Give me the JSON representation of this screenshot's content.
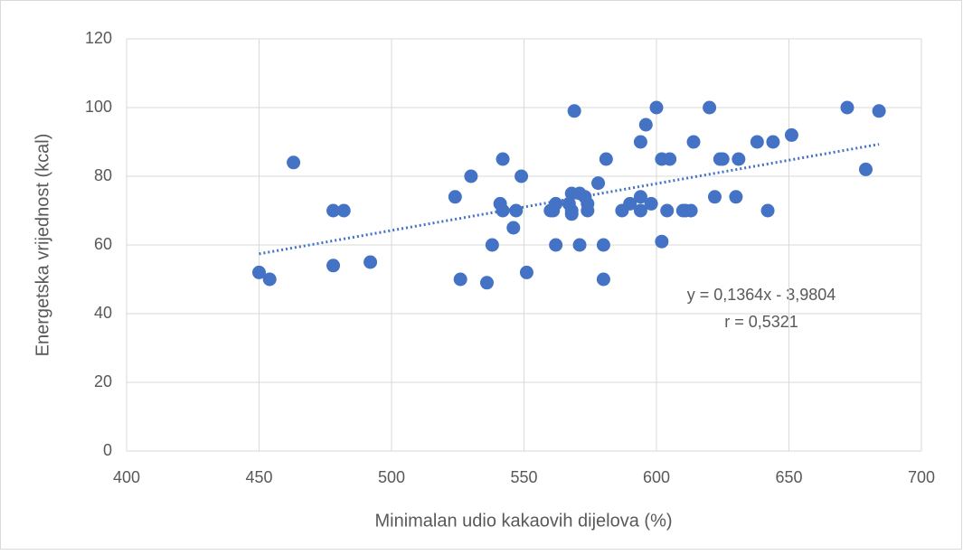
{
  "chart_data": {
    "type": "scatter",
    "x_label": "Minimalan udio kakaovih dijelova (%)",
    "y_label": "Energetska vrijednost (kcal)",
    "xlim": [
      400,
      700
    ],
    "xticks": [
      400,
      450,
      500,
      550,
      600,
      650,
      700
    ],
    "ylim": [
      0,
      120
    ],
    "yticks": [
      0,
      20,
      40,
      60,
      80,
      100,
      120
    ],
    "grid": true,
    "series": [
      {
        "color": "#4472c4",
        "x": [
          450,
          454,
          463,
          478,
          482,
          478,
          492,
          524,
          530,
          526,
          536,
          538,
          542,
          541,
          542,
          547,
          546,
          549,
          551,
          561,
          562,
          562,
          560,
          568,
          567,
          568,
          568,
          571,
          573,
          574,
          574,
          569,
          571,
          578,
          580,
          580,
          581,
          587,
          590,
          594,
          594,
          594,
          596,
          598,
          600,
          602,
          602,
          604,
          605,
          610,
          611,
          613,
          614,
          620,
          622,
          624,
          625,
          631,
          630,
          638,
          642,
          644,
          651,
          672,
          679,
          684
        ],
        "values": [
          52,
          50,
          84,
          70,
          70,
          54,
          55,
          74,
          80,
          50,
          49,
          60,
          85,
          72,
          70,
          70,
          65,
          80,
          52,
          70,
          60,
          72,
          70,
          75,
          72,
          70,
          69,
          75,
          74,
          72,
          70,
          99,
          60,
          78,
          50,
          60,
          85,
          70,
          72,
          90,
          74,
          70,
          95,
          72,
          100,
          85,
          61,
          70,
          85,
          70,
          70,
          70,
          90,
          100,
          74,
          85,
          85,
          85,
          74,
          90,
          70,
          90,
          92,
          100,
          82,
          99
        ]
      }
    ],
    "trendline": {
      "slope": 0.1364,
      "intercept": -3.9804,
      "equation": "y = 0,1364x - 3,9804",
      "r": 0.5321,
      "r_label": "r = 0,5321"
    }
  }
}
